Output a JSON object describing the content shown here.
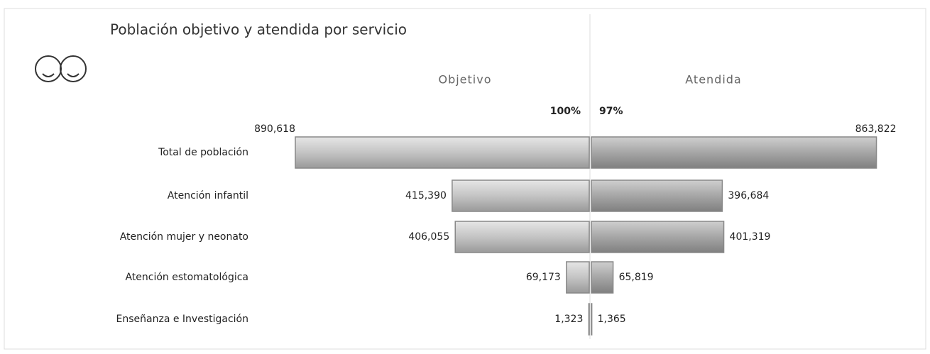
{
  "chart_data": {
    "type": "butterfly",
    "title": "Población objetivo y atendida por servicio",
    "categories": [
      "Total de población",
      "Atención infantil",
      "Atención mujer y neonato",
      "Atención estomatológica",
      "Enseñanza e Investigación"
    ],
    "series": [
      {
        "name": "Objetivo",
        "color": "#c4c4c4",
        "values": [
          890618,
          415390,
          406055,
          69173,
          1323
        ],
        "value_labels": [
          "890,618",
          "415,390",
          "406,055",
          "69,173",
          "1,323"
        ]
      },
      {
        "name": "Atendida",
        "color": "#a6a6a6",
        "values": [
          863822,
          396684,
          401319,
          65819,
          1365
        ],
        "value_labels": [
          "863,822",
          "396,684",
          "401,319",
          "65,819",
          "1,365"
        ]
      }
    ],
    "annotations": [
      "100%",
      "97%"
    ]
  }
}
